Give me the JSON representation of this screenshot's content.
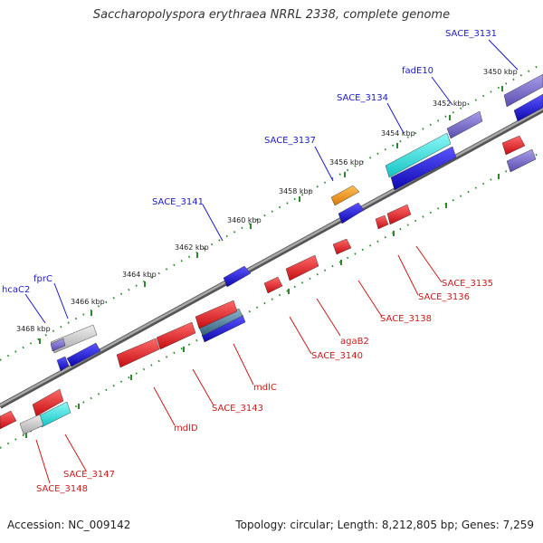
{
  "title": "Saccharopolyspora erythraea NRRL 2338, complete genome",
  "footer": {
    "accession": "Accession: NC_009142",
    "info": "Topology: circular; Length: 8,212,805 bp; Genes: 7,259"
  },
  "colors": {
    "forward_label": "#1a1acd",
    "reverse_label": "#cc1a1a",
    "backbone": "#888888",
    "tick": "#2a8a2a",
    "gene_red": "#e0131c",
    "gene_blue": "#1a12d8",
    "gene_cyan": "#1fdede",
    "gene_violet": "#7265c4",
    "gene_orange": "#ef8d0c",
    "gene_gray": "#c4c4c4",
    "gene_steel": "#4b7fa0"
  },
  "ruler_ticks": [
    {
      "label": "3450 kbp"
    },
    {
      "label": "3452 kbp"
    },
    {
      "label": "3454 kbp"
    },
    {
      "label": "3456 kbp"
    },
    {
      "label": "3458 kbp"
    },
    {
      "label": "3460 kbp"
    },
    {
      "label": "3462 kbp"
    },
    {
      "label": "3464 kbp"
    },
    {
      "label": "3466 kbp"
    },
    {
      "label": "3468 kbp"
    }
  ],
  "forward_labels": [
    "SACE_3131",
    "fadE10",
    "SACE_3134",
    "SACE_3137",
    "SACE_3141",
    "fprC",
    "hcaC2"
  ],
  "reverse_labels": [
    "SACE_3135",
    "SACE_3136",
    "SACE_3138",
    "agaB2",
    "SACE_3140",
    "mdlC",
    "SACE_3143",
    "mdlD",
    "SACE_3147",
    "SACE_3148"
  ]
}
